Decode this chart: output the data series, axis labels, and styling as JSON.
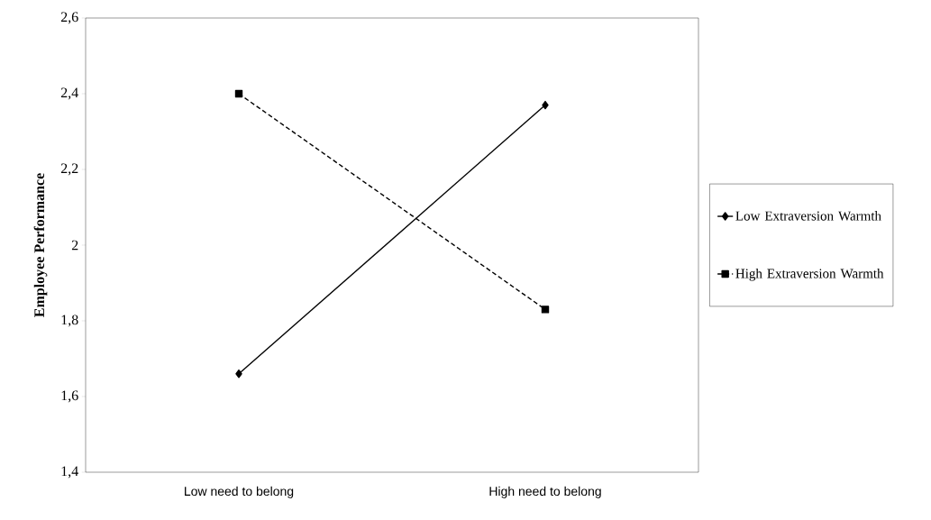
{
  "chart_data": {
    "type": "line",
    "ylabel": "Employee Performance",
    "categories": [
      "Low need to belong",
      "High need to belong"
    ],
    "series": [
      {
        "name": "Low Extraversion Warmth",
        "color": "#000000",
        "values": [
          1.66,
          2.37
        ],
        "marker": "diamond",
        "line_style": "solid"
      },
      {
        "name": "High Extraversion Warmth",
        "color": "#000000",
        "values": [
          2.4,
          1.83
        ],
        "marker": "square",
        "line_style": "dashed"
      }
    ],
    "ylim": [
      1.4,
      2.6
    ],
    "yticks": [
      {
        "value": 1.4,
        "label": "1,4"
      },
      {
        "value": 1.6,
        "label": "1,6"
      },
      {
        "value": 1.8,
        "label": "1,8"
      },
      2,
      {
        "value": 2.2,
        "label": "2,2"
      },
      {
        "value": 2.4,
        "label": "2,4"
      },
      {
        "value": 2.6,
        "label": "2,6"
      }
    ],
    "grid": false,
    "legend": "right"
  }
}
